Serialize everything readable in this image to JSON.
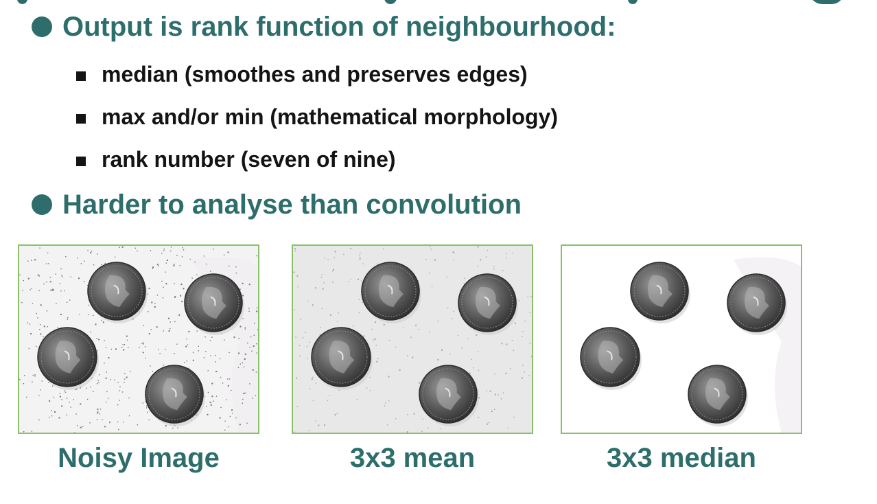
{
  "bullets": [
    {
      "text": "Output is rank function of neighbourhood:",
      "subitems": [
        "median (smoothes and preserves edges)",
        "max and/or min (mathematical morphology)",
        "rank number (seven of nine)"
      ]
    },
    {
      "text": "Harder to analyse than convolution"
    }
  ],
  "images": [
    {
      "caption": "Noisy Image",
      "background": "#f4f3f4",
      "noise": "heavy"
    },
    {
      "caption": "3x3 mean",
      "background": "#e9e8e9",
      "noise": "light"
    },
    {
      "caption": "3x3 median",
      "background": "#ffffff",
      "noise": "none"
    }
  ],
  "colors": {
    "heading": "#2d6e6c",
    "body_text": "#141414",
    "image_border": "#8ac06a"
  }
}
